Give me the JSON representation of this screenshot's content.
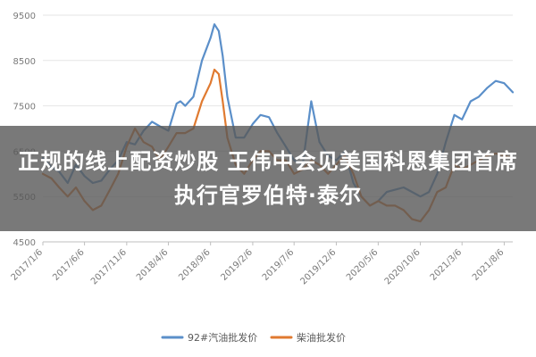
{
  "headline": "正规的线上配资炒股 王伟中会见美国科恩集团首席执行官罗伯特·泰尔",
  "colors": {
    "series_92": "#5b8fc9",
    "series_diesel": "#e07a30",
    "grid": "#e6e6e6",
    "axis_text": "#7a7a7a",
    "banner_bg": "#585858"
  },
  "chart_data": {
    "type": "line",
    "ylim": [
      4500,
      9500
    ],
    "yticks": [
      4500,
      5500,
      6500,
      7500,
      8500,
      9500
    ],
    "xticks": [
      "2017/1/6",
      "2017/6/6",
      "2017/11/6",
      "2018/4/6",
      "2018/9/6",
      "2019/2/6",
      "2019/7/6",
      "2019/12/6",
      "2020/5/6",
      "2020/10/6",
      "2021/3/6",
      "2021/8/6"
    ],
    "xrange": [
      "2017/1/6",
      "2021/9/6"
    ],
    "grid": true,
    "legend_position": "bottom",
    "series": [
      {
        "name": "92#汽油批发价",
        "color": "#5b8fc9",
        "points": [
          [
            "2017/1/6",
            6350
          ],
          [
            "2017/2/6",
            6150
          ],
          [
            "2017/3/6",
            6050
          ],
          [
            "2017/4/6",
            5800
          ],
          [
            "2017/5/6",
            6200
          ],
          [
            "2017/6/6",
            5950
          ],
          [
            "2017/7/6",
            5800
          ],
          [
            "2017/8/6",
            5850
          ],
          [
            "2017/9/6",
            6100
          ],
          [
            "2017/10/6",
            6300
          ],
          [
            "2017/11/6",
            6700
          ],
          [
            "2017/12/6",
            6650
          ],
          [
            "2018/1/6",
            6950
          ],
          [
            "2018/2/6",
            7150
          ],
          [
            "2018/3/6",
            7050
          ],
          [
            "2018/4/6",
            6950
          ],
          [
            "2018/5/6",
            7550
          ],
          [
            "2018/5/20",
            7600
          ],
          [
            "2018/6/6",
            7500
          ],
          [
            "2018/7/6",
            7700
          ],
          [
            "2018/8/6",
            8500
          ],
          [
            "2018/9/6",
            9000
          ],
          [
            "2018/9/20",
            9300
          ],
          [
            "2018/10/6",
            9150
          ],
          [
            "2018/10/20",
            8600
          ],
          [
            "2018/11/6",
            7700
          ],
          [
            "2018/12/6",
            6800
          ],
          [
            "2019/1/6",
            6800
          ],
          [
            "2019/2/6",
            7100
          ],
          [
            "2019/3/6",
            7300
          ],
          [
            "2019/4/6",
            7250
          ],
          [
            "2019/5/6",
            6900
          ],
          [
            "2019/6/6",
            6600
          ],
          [
            "2019/7/6",
            6300
          ],
          [
            "2019/8/6",
            6200
          ],
          [
            "2019/9/6",
            7600
          ],
          [
            "2019/10/6",
            6700
          ],
          [
            "2019/11/6",
            6400
          ],
          [
            "2019/12/6",
            6300
          ],
          [
            "2020/1/6",
            6500
          ],
          [
            "2020/2/6",
            5800
          ],
          [
            "2020/3/6",
            5500
          ],
          [
            "2020/4/6",
            5300
          ],
          [
            "2020/5/6",
            5400
          ],
          [
            "2020/6/6",
            5600
          ],
          [
            "2020/7/6",
            5650
          ],
          [
            "2020/8/6",
            5700
          ],
          [
            "2020/9/6",
            5600
          ],
          [
            "2020/10/6",
            5500
          ],
          [
            "2020/11/6",
            5600
          ],
          [
            "2020/12/6",
            6000
          ],
          [
            "2021/1/6",
            6700
          ],
          [
            "2021/2/6",
            7300
          ],
          [
            "2021/3/6",
            7200
          ],
          [
            "2021/4/6",
            7600
          ],
          [
            "2021/5/6",
            7700
          ],
          [
            "2021/6/6",
            7900
          ],
          [
            "2021/7/6",
            8050
          ],
          [
            "2021/8/6",
            8000
          ],
          [
            "2021/9/6",
            7800
          ]
        ]
      },
      {
        "name": "柴油批发价",
        "color": "#e07a30",
        "points": [
          [
            "2017/1/6",
            6000
          ],
          [
            "2017/2/6",
            5900
          ],
          [
            "2017/3/6",
            5700
          ],
          [
            "2017/4/6",
            5500
          ],
          [
            "2017/5/6",
            5700
          ],
          [
            "2017/6/6",
            5400
          ],
          [
            "2017/7/6",
            5200
          ],
          [
            "2017/8/6",
            5300
          ],
          [
            "2017/9/6",
            5650
          ],
          [
            "2017/10/6",
            6000
          ],
          [
            "2017/11/6",
            6600
          ],
          [
            "2017/12/6",
            7000
          ],
          [
            "2018/1/6",
            6700
          ],
          [
            "2018/2/6",
            6600
          ],
          [
            "2018/3/6",
            6300
          ],
          [
            "2018/4/6",
            6600
          ],
          [
            "2018/5/6",
            6900
          ],
          [
            "2018/6/6",
            6900
          ],
          [
            "2018/7/6",
            7000
          ],
          [
            "2018/8/6",
            7600
          ],
          [
            "2018/9/6",
            8000
          ],
          [
            "2018/9/20",
            8300
          ],
          [
            "2018/10/6",
            8200
          ],
          [
            "2018/10/20",
            7600
          ],
          [
            "2018/11/6",
            6800
          ],
          [
            "2018/12/6",
            6200
          ],
          [
            "2019/1/6",
            6000
          ],
          [
            "2019/2/6",
            6300
          ],
          [
            "2019/3/6",
            6500
          ],
          [
            "2019/4/6",
            6500
          ],
          [
            "2019/5/6",
            6300
          ],
          [
            "2019/6/6",
            6300
          ],
          [
            "2019/7/6",
            6000
          ],
          [
            "2019/8/6",
            6100
          ],
          [
            "2019/9/6",
            6300
          ],
          [
            "2019/10/6",
            6200
          ],
          [
            "2019/11/6",
            6000
          ],
          [
            "2019/12/6",
            6200
          ],
          [
            "2020/1/6",
            6400
          ],
          [
            "2020/2/6",
            6000
          ],
          [
            "2020/3/6",
            5500
          ],
          [
            "2020/4/6",
            5300
          ],
          [
            "2020/5/6",
            5400
          ],
          [
            "2020/6/6",
            5300
          ],
          [
            "2020/7/6",
            5300
          ],
          [
            "2020/8/6",
            5200
          ],
          [
            "2020/9/6",
            5000
          ],
          [
            "2020/10/6",
            4950
          ],
          [
            "2020/11/6",
            5200
          ],
          [
            "2020/12/6",
            5600
          ],
          [
            "2021/1/6",
            5700
          ],
          [
            "2021/2/6",
            6200
          ],
          [
            "2021/3/6",
            6100
          ],
          [
            "2021/4/6",
            6200
          ],
          [
            "2021/5/6",
            6300
          ],
          [
            "2021/6/6",
            6400
          ],
          [
            "2021/7/6",
            6450
          ],
          [
            "2021/8/6",
            6400
          ],
          [
            "2021/9/6",
            6350
          ]
        ]
      }
    ]
  }
}
